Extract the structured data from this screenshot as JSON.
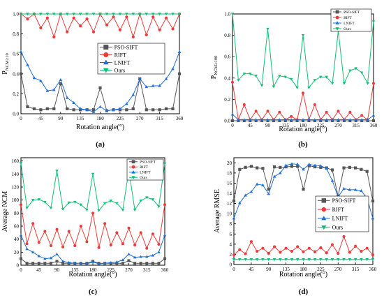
{
  "colors": {
    "PSO-SIFT": "#555555",
    "RIFT": "#ee3a3a",
    "LNIFT": "#1e6fd6",
    "Ours": "#0fbf74"
  },
  "chart_data": [
    {
      "type": "line",
      "panel_label": "(a)",
      "ylabel": "P",
      "ylabel_sub": "NCM≥10",
      "xlabel": "Rotation angle(°)",
      "xlim": [
        0,
        360
      ],
      "ylim": [
        0,
        1.0
      ],
      "xticks": [
        0,
        45,
        90,
        135,
        180,
        225,
        270,
        315,
        360
      ],
      "yticks": [
        0,
        0.2,
        0.4,
        0.6,
        0.8,
        1.0
      ],
      "ytick_labels": [
        "0.0",
        "0.2",
        "0.4",
        "0.6",
        "0.8",
        "1.0"
      ],
      "legend_position": "center-right",
      "x": [
        0,
        15,
        30,
        45,
        60,
        75,
        90,
        105,
        120,
        135,
        150,
        165,
        180,
        195,
        210,
        225,
        240,
        255,
        270,
        285,
        300,
        315,
        330,
        345,
        360
      ],
      "series": [
        {
          "name": "PSO-SIFT",
          "marker": "square",
          "values": [
            0.4,
            0.07,
            0.05,
            0.04,
            0.05,
            0.05,
            0.3,
            0.05,
            0.04,
            0.04,
            0.04,
            0.04,
            0.26,
            0.03,
            0.04,
            0.04,
            0.04,
            0.05,
            0.35,
            0.04,
            0.04,
            0.04,
            0.05,
            0.05,
            0.4
          ]
        },
        {
          "name": "RIFT",
          "marker": "circle",
          "values": [
            1.0,
            0.95,
            1.0,
            0.86,
            0.96,
            0.77,
            1.0,
            0.82,
            0.96,
            0.88,
            0.95,
            0.82,
            1.0,
            0.89,
            0.97,
            0.84,
            0.97,
            0.77,
            1.0,
            0.79,
            0.97,
            0.84,
            0.96,
            0.85,
            1.0
          ]
        },
        {
          "name": "LNIFT",
          "marker": "triangle-up",
          "values": [
            0.62,
            0.49,
            0.36,
            0.33,
            0.23,
            0.24,
            0.34,
            0.16,
            0.11,
            0.05,
            0.04,
            0.02,
            0.07,
            0.03,
            0.04,
            0.05,
            0.1,
            0.19,
            0.35,
            0.27,
            0.28,
            0.28,
            0.35,
            0.45,
            0.62
          ]
        },
        {
          "name": "Ours",
          "marker": "triangle-down",
          "values": [
            1.0,
            1.0,
            1.0,
            1.0,
            1.0,
            1.0,
            1.0,
            1.0,
            1.0,
            1.0,
            1.0,
            1.0,
            1.0,
            1.0,
            1.0,
            1.0,
            1.0,
            1.0,
            1.0,
            1.0,
            1.0,
            1.0,
            1.0,
            1.0,
            1.0
          ]
        }
      ]
    },
    {
      "type": "line",
      "panel_label": "(b)",
      "ylabel": "P",
      "ylabel_sub": "NCM≥100",
      "xlabel": "Rotation angle(°)",
      "xlim": [
        0,
        360
      ],
      "ylim": [
        0,
        1.0
      ],
      "xticks": [
        0,
        45,
        90,
        135,
        180,
        225,
        270,
        315,
        360
      ],
      "yticks": [
        0,
        0.2,
        0.4,
        0.6,
        0.8,
        1.0
      ],
      "ytick_labels": [
        "0.0",
        "0.2",
        "0.4",
        "0.6",
        "0.8",
        "1.0"
      ],
      "legend_position": "top-right",
      "x": [
        0,
        15,
        30,
        45,
        60,
        75,
        90,
        105,
        120,
        135,
        150,
        165,
        180,
        195,
        210,
        225,
        240,
        255,
        270,
        285,
        300,
        315,
        330,
        345,
        360
      ],
      "series": [
        {
          "name": "PSO-SIFT",
          "marker": "square",
          "values": [
            0.0,
            0.0,
            0.0,
            0.0,
            0.0,
            0.0,
            0.0,
            0.0,
            0.0,
            0.0,
            0.0,
            0.0,
            0.0,
            0.0,
            0.0,
            0.0,
            0.0,
            0.0,
            0.0,
            0.0,
            0.0,
            0.0,
            0.0,
            0.0,
            0.0
          ]
        },
        {
          "name": "RIFT",
          "marker": "circle",
          "values": [
            0.36,
            0.01,
            0.15,
            0.01,
            0.09,
            0.01,
            0.09,
            0.01,
            0.08,
            0.01,
            0.04,
            0.01,
            0.26,
            0.01,
            0.15,
            0.01,
            0.08,
            0.01,
            0.09,
            0.01,
            0.08,
            0.01,
            0.05,
            0.01,
            0.35
          ]
        },
        {
          "name": "LNIFT",
          "marker": "triangle-up",
          "values": [
            0.06,
            0.01,
            0.01,
            0.01,
            0.01,
            0.01,
            0.01,
            0.01,
            0.01,
            0.01,
            0.01,
            0.01,
            0.01,
            0.01,
            0.01,
            0.01,
            0.01,
            0.01,
            0.01,
            0.01,
            0.01,
            0.01,
            0.01,
            0.01,
            0.05
          ]
        },
        {
          "name": "Ours",
          "marker": "triangle-down",
          "values": [
            1.0,
            0.38,
            0.44,
            0.44,
            0.42,
            0.33,
            0.86,
            0.32,
            0.42,
            0.41,
            0.39,
            0.31,
            0.8,
            0.31,
            0.38,
            0.41,
            0.41,
            0.35,
            0.84,
            0.35,
            0.47,
            0.49,
            0.45,
            0.35,
            0.93
          ]
        }
      ]
    },
    {
      "type": "line",
      "panel_label": "(c)",
      "ylabel": "Average NCM",
      "xlabel": "Rotation angle(°)",
      "xlim": [
        0,
        360
      ],
      "ylim": [
        0,
        165
      ],
      "xticks": [
        0,
        45,
        90,
        135,
        180,
        225,
        270,
        315,
        360
      ],
      "yticks": [
        0,
        20,
        40,
        60,
        80,
        100,
        120,
        140,
        160
      ],
      "ytick_labels": [
        "0",
        "20",
        "40",
        "60",
        "80",
        "100",
        "120",
        "140",
        "160"
      ],
      "legend_position": "top-right",
      "x": [
        0,
        15,
        30,
        45,
        60,
        75,
        90,
        105,
        120,
        135,
        150,
        165,
        180,
        195,
        210,
        225,
        240,
        255,
        270,
        285,
        300,
        315,
        330,
        345,
        360
      ],
      "series": [
        {
          "name": "PSO-SIFT",
          "marker": "square",
          "values": [
            10,
            3,
            3,
            3,
            3,
            3,
            6,
            3,
            3,
            3,
            3,
            3,
            6,
            3,
            3,
            3,
            3,
            3,
            7,
            3,
            3,
            3,
            3,
            3,
            10
          ]
        },
        {
          "name": "RIFT",
          "marker": "circle",
          "values": [
            93,
            33,
            64,
            35,
            52,
            30,
            55,
            28,
            52,
            30,
            60,
            36,
            80,
            27,
            64,
            31,
            50,
            33,
            57,
            31,
            50,
            26,
            48,
            32,
            93
          ]
        },
        {
          "name": "LNIFT",
          "marker": "triangle-up",
          "values": [
            46,
            25,
            20,
            14,
            10,
            11,
            17,
            6,
            4,
            3,
            3,
            2,
            5,
            2,
            3,
            4,
            5,
            8,
            17,
            12,
            13,
            13,
            15,
            20,
            46
          ]
        },
        {
          "name": "Ours",
          "marker": "triangle-down",
          "values": [
            157,
            88,
            100,
            101,
            97,
            88,
            145,
            86,
            96,
            97,
            93,
            85,
            140,
            84,
            95,
            99,
            95,
            85,
            146,
            85,
            99,
            104,
            101,
            90,
            156
          ]
        }
      ]
    },
    {
      "type": "line",
      "panel_label": "(d)",
      "ylabel": "Average RMSE",
      "xlabel": "Rotation angle(°)",
      "xlim": [
        0,
        360
      ],
      "ylim": [
        0,
        21
      ],
      "xticks": [
        0,
        45,
        90,
        135,
        180,
        225,
        270,
        315,
        360
      ],
      "yticks": [
        0,
        2,
        4,
        6,
        8,
        10,
        12,
        14,
        16,
        18,
        20
      ],
      "ytick_labels": [
        "0",
        "2",
        "4",
        "6",
        "8",
        "10",
        "12",
        "14",
        "16",
        "18",
        "20"
      ],
      "legend_position": "center-right",
      "x": [
        0,
        15,
        30,
        45,
        60,
        75,
        90,
        105,
        120,
        135,
        150,
        165,
        180,
        195,
        210,
        225,
        240,
        255,
        270,
        285,
        300,
        315,
        330,
        345,
        360
      ],
      "series": [
        {
          "name": "PSO-SIFT",
          "marker": "square",
          "values": [
            12.5,
            18.7,
            19.1,
            19.3,
            19.0,
            18.9,
            14.8,
            19.2,
            19.1,
            19.2,
            19.3,
            19.3,
            14.8,
            19.4,
            19.2,
            19.1,
            19.0,
            18.6,
            13.4,
            19.0,
            19.1,
            19.0,
            18.7,
            18.3,
            12.5
          ]
        },
        {
          "name": "RIFT",
          "marker": "circle",
          "values": [
            1.9,
            2.9,
            2.1,
            4.5,
            2.6,
            3.2,
            2.2,
            3.5,
            2.4,
            3.2,
            2.6,
            3.5,
            2.5,
            3.2,
            2.5,
            3.3,
            2.3,
            3.9,
            2.2,
            5.5,
            2.4,
            3.6,
            2.6,
            3.2,
            1.9
          ]
        },
        {
          "name": "LNIFT",
          "marker": "triangle-up",
          "values": [
            9.1,
            12.1,
            13.6,
            14.3,
            15.8,
            15.6,
            13.9,
            17.3,
            18.0,
            19.5,
            19.8,
            19.7,
            18.7,
            19.7,
            19.5,
            19.4,
            18.9,
            16.5,
            13.3,
            14.9,
            14.7,
            14.7,
            14.5,
            13.0,
            9.1
          ]
        },
        {
          "name": "Ours",
          "marker": "triangle-down",
          "values": [
            1.0,
            1.0,
            1.0,
            1.0,
            1.0,
            1.0,
            1.0,
            1.0,
            1.0,
            1.0,
            1.0,
            1.0,
            1.0,
            1.0,
            1.0,
            1.0,
            1.0,
            1.0,
            1.0,
            1.0,
            1.0,
            1.0,
            1.0,
            1.0,
            1.0
          ]
        }
      ]
    }
  ]
}
